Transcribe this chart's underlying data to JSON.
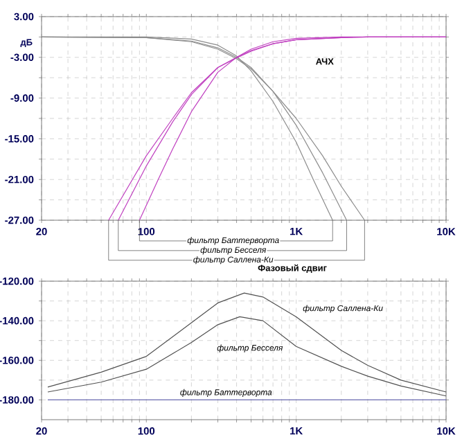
{
  "chart_data": [
    {
      "type": "line",
      "ylabel": "дБ",
      "log": "x",
      "grid": true,
      "xlim": [
        20,
        10000
      ],
      "ylim": [
        -27,
        3
      ],
      "xticks": [
        {
          "value": 20,
          "label": "20"
        },
        {
          "value": 30,
          "label": null
        },
        {
          "value": 40,
          "label": null
        },
        {
          "value": 50,
          "label": null
        },
        {
          "value": 60,
          "label": null
        },
        {
          "value": 70,
          "label": null
        },
        {
          "value": 80,
          "label": null
        },
        {
          "value": 90,
          "label": null
        },
        {
          "value": 100,
          "label": "100"
        },
        {
          "value": 200,
          "label": null
        },
        {
          "value": 300,
          "label": null
        },
        {
          "value": 400,
          "label": null
        },
        {
          "value": 500,
          "label": null
        },
        {
          "value": 600,
          "label": null
        },
        {
          "value": 700,
          "label": null
        },
        {
          "value": 800,
          "label": null
        },
        {
          "value": 900,
          "label": null
        },
        {
          "value": 1000,
          "label": "1K"
        },
        {
          "value": 2000,
          "label": null
        },
        {
          "value": 3000,
          "label": null
        },
        {
          "value": 4000,
          "label": null
        },
        {
          "value": 5000,
          "label": null
        },
        {
          "value": 6000,
          "label": null
        },
        {
          "value": 7000,
          "label": null
        },
        {
          "value": 8000,
          "label": null
        },
        {
          "value": 9000,
          "label": null
        },
        {
          "value": 10000,
          "label": "10K"
        }
      ],
      "yticks": [
        {
          "value": 3,
          "label": "3.00"
        },
        {
          "value": 0,
          "label": null
        },
        {
          "value": -3,
          "label": "-3.00"
        },
        {
          "value": -6,
          "label": null
        },
        {
          "value": -9,
          "label": "-9.00"
        },
        {
          "value": -12,
          "label": null
        },
        {
          "value": -15,
          "label": "-15.00"
        },
        {
          "value": -18,
          "label": null
        },
        {
          "value": -21,
          "label": "-21.00"
        },
        {
          "value": -24,
          "label": null
        },
        {
          "value": -27,
          "label": "-27.00"
        }
      ],
      "series": [
        {
          "color": "#8c8c8c",
          "x": [
            20,
            100,
            200,
            300,
            400,
            500,
            700,
            1000,
            1300,
            1750
          ],
          "values": [
            0,
            0,
            -0.3,
            -1.2,
            -2.8,
            -5,
            -9.5,
            -15.5,
            -21,
            -27
          ]
        },
        {
          "color": "#c040c0",
          "x": [
            90,
            120,
            150,
            200,
            300,
            400,
            500,
            700,
            1000,
            2000,
            10000
          ],
          "values": [
            -27,
            -21,
            -16.5,
            -11,
            -5.2,
            -3,
            -1.8,
            -0.7,
            -0.2,
            0,
            0
          ]
        },
        {
          "color": "#8c8c8c",
          "x": [
            20,
            100,
            200,
            300,
            400,
            500,
            700,
            1000,
            1500,
            2170
          ],
          "values": [
            0,
            -0.1,
            -0.6,
            -1.6,
            -3,
            -4.5,
            -8,
            -13,
            -20,
            -27
          ]
        },
        {
          "color": "#c040c0",
          "x": [
            65,
            100,
            150,
            200,
            300,
            400,
            500,
            700,
            1000,
            2000,
            3000,
            10000
          ],
          "values": [
            -27,
            -19,
            -12.5,
            -8.5,
            -4.5,
            -3,
            -2,
            -1,
            -0.4,
            -0.1,
            0,
            0
          ]
        },
        {
          "color": "#8c8c8c",
          "x": [
            20,
            100,
            200,
            300,
            400,
            500,
            700,
            1000,
            1500,
            2000,
            2860
          ],
          "values": [
            0,
            -0.1,
            -0.7,
            -1.8,
            -3.2,
            -4.7,
            -8,
            -12,
            -17.5,
            -22,
            -27
          ]
        },
        {
          "color": "#c040c0",
          "x": [
            56,
            100,
            150,
            200,
            300,
            400,
            500,
            700,
            1000,
            2000,
            3000,
            10000
          ],
          "values": [
            -27,
            -17.5,
            -12,
            -8.2,
            -4.5,
            -3.1,
            -2.1,
            -1,
            -0.4,
            -0.1,
            0,
            0
          ]
        }
      ],
      "annotations": [
        "АЧХ",
        "фильтр Баттерворта",
        "фильтр Бесселя",
        "фильтр Саллена-Ки"
      ]
    },
    {
      "type": "line",
      "title": "Фазовый сдвиг",
      "log": "x",
      "grid": true,
      "xlim": [
        20,
        10000
      ],
      "ylim": [
        -190,
        -120
      ],
      "xticks": [
        {
          "value": 20,
          "label": "20"
        },
        {
          "value": 30,
          "label": null
        },
        {
          "value": 40,
          "label": null
        },
        {
          "value": 50,
          "label": null
        },
        {
          "value": 60,
          "label": null
        },
        {
          "value": 70,
          "label": null
        },
        {
          "value": 80,
          "label": null
        },
        {
          "value": 90,
          "label": null
        },
        {
          "value": 100,
          "label": "100"
        },
        {
          "value": 200,
          "label": null
        },
        {
          "value": 300,
          "label": null
        },
        {
          "value": 400,
          "label": null
        },
        {
          "value": 500,
          "label": null
        },
        {
          "value": 600,
          "label": null
        },
        {
          "value": 700,
          "label": null
        },
        {
          "value": 800,
          "label": null
        },
        {
          "value": 900,
          "label": null
        },
        {
          "value": 1000,
          "label": "1K"
        },
        {
          "value": 2000,
          "label": null
        },
        {
          "value": 3000,
          "label": null
        },
        {
          "value": 4000,
          "label": null
        },
        {
          "value": 5000,
          "label": null
        },
        {
          "value": 6000,
          "label": null
        },
        {
          "value": 7000,
          "label": null
        },
        {
          "value": 8000,
          "label": null
        },
        {
          "value": 9000,
          "label": null
        },
        {
          "value": 10000,
          "label": "10K"
        }
      ],
      "yticks": [
        {
          "value": -120,
          "label": "-120.00"
        },
        {
          "value": -130,
          "label": null
        },
        {
          "value": -140,
          "label": "-140.00"
        },
        {
          "value": -150,
          "label": null
        },
        {
          "value": -160,
          "label": "-160.00"
        },
        {
          "value": -170,
          "label": null
        },
        {
          "value": -180,
          "label": "-180.00"
        }
      ],
      "series": [
        {
          "color": "#505050",
          "x": [
            22,
            50,
            100,
            200,
            300,
            450,
            600,
            1000,
            2000,
            3000,
            5000,
            10000
          ],
          "values": [
            -173.5,
            -166,
            -158,
            -141,
            -131,
            -126,
            -128,
            -138,
            -155,
            -162.5,
            -170,
            -176
          ]
        },
        {
          "color": "#505050",
          "x": [
            22,
            50,
            100,
            200,
            300,
            420,
            600,
            1000,
            2000,
            3000,
            5000,
            10000
          ],
          "values": [
            -176,
            -171,
            -164.5,
            -151,
            -142,
            -138,
            -140,
            -153,
            -163,
            -168,
            -173,
            -178
          ]
        },
        {
          "color": "#6a6ab0",
          "x": [
            22,
            10000
          ],
          "values": [
            -180,
            -180
          ]
        }
      ],
      "annotations": [
        "фильтр Саллена-Ки",
        "фильтр Бесселя",
        {
          "text": "фильтр Баттерворта",
          "x": 340,
          "y": -176.5
        }
      ]
    }
  ]
}
